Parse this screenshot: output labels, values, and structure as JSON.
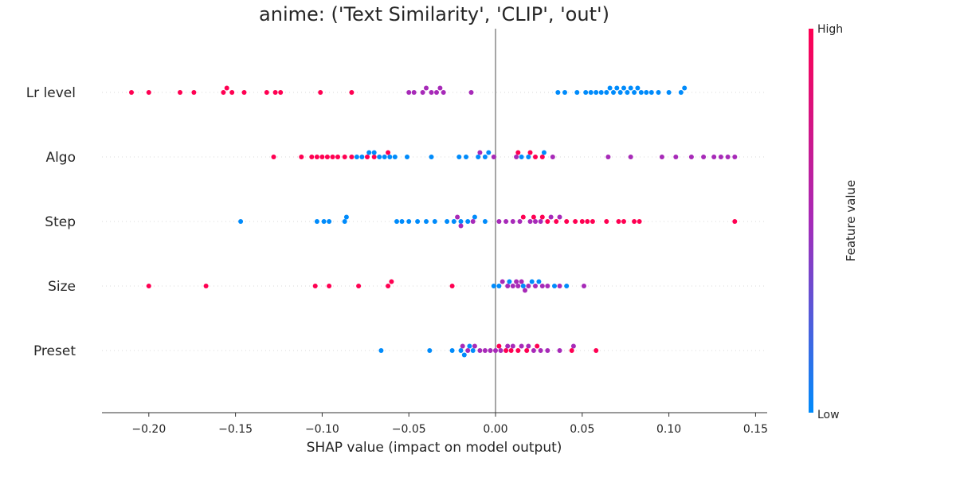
{
  "chart_data": {
    "type": "scatter",
    "title": "anime: ('Text Similarity', 'CLIP', 'out')",
    "xlabel": "SHAP value (impact on model output)",
    "xlim": [
      -0.226,
      0.157
    ],
    "xticks": [
      -0.2,
      -0.15,
      -0.1,
      -0.05,
      0.0,
      0.05,
      0.1,
      0.15
    ],
    "xtick_labels": [
      "−0.20",
      "−0.15",
      "−0.10",
      "−0.05",
      "0.00",
      "0.05",
      "0.10",
      "0.15"
    ],
    "categories": [
      "Lr level",
      "Algo",
      "Step",
      "Size",
      "Preset"
    ],
    "colorbar": {
      "high_label": "High",
      "low_label": "Low",
      "label": "Feature value",
      "low_color": "#008bfb",
      "mid_color": "#a72ab8",
      "high_color": "#ff0052"
    },
    "series": [
      {
        "feature": "Lr level",
        "points": [
          [
            -0.21,
            1
          ],
          [
            -0.2,
            1
          ],
          [
            -0.182,
            1
          ],
          [
            -0.174,
            1
          ],
          [
            -0.157,
            1
          ],
          [
            -0.155,
            1
          ],
          [
            -0.152,
            1
          ],
          [
            -0.145,
            1
          ],
          [
            -0.132,
            1
          ],
          [
            -0.127,
            1
          ],
          [
            -0.124,
            1
          ],
          [
            -0.101,
            1
          ],
          [
            -0.083,
            1
          ],
          [
            -0.05,
            0.5
          ],
          [
            -0.047,
            0.5
          ],
          [
            -0.042,
            0.5
          ],
          [
            -0.04,
            0.5
          ],
          [
            -0.037,
            0.5
          ],
          [
            -0.034,
            0.5
          ],
          [
            -0.032,
            0.5
          ],
          [
            -0.03,
            0.5
          ],
          [
            -0.014,
            0.5
          ],
          [
            0.036,
            0
          ],
          [
            0.04,
            0
          ],
          [
            0.047,
            0
          ],
          [
            0.052,
            0
          ],
          [
            0.055,
            0
          ],
          [
            0.058,
            0
          ],
          [
            0.061,
            0
          ],
          [
            0.064,
            0
          ],
          [
            0.066,
            0
          ],
          [
            0.068,
            0
          ],
          [
            0.07,
            0
          ],
          [
            0.072,
            0
          ],
          [
            0.074,
            0
          ],
          [
            0.076,
            0
          ],
          [
            0.078,
            0
          ],
          [
            0.08,
            0
          ],
          [
            0.082,
            0
          ],
          [
            0.084,
            0
          ],
          [
            0.087,
            0
          ],
          [
            0.09,
            0
          ],
          [
            0.094,
            0
          ],
          [
            0.1,
            0
          ],
          [
            0.107,
            0
          ],
          [
            0.109,
            0
          ]
        ]
      },
      {
        "feature": "Algo",
        "points": [
          [
            -0.128,
            1
          ],
          [
            -0.112,
            1
          ],
          [
            -0.106,
            1
          ],
          [
            -0.103,
            1
          ],
          [
            -0.1,
            1
          ],
          [
            -0.097,
            1
          ],
          [
            -0.094,
            1
          ],
          [
            -0.091,
            1
          ],
          [
            -0.087,
            1
          ],
          [
            -0.083,
            1
          ],
          [
            -0.074,
            1
          ],
          [
            -0.07,
            1
          ],
          [
            -0.062,
            1
          ],
          [
            -0.08,
            0
          ],
          [
            -0.077,
            0
          ],
          [
            -0.073,
            0
          ],
          [
            -0.07,
            0
          ],
          [
            -0.067,
            0
          ],
          [
            -0.064,
            0
          ],
          [
            -0.061,
            0
          ],
          [
            -0.058,
            0
          ],
          [
            -0.051,
            0
          ],
          [
            -0.037,
            0
          ],
          [
            -0.021,
            0
          ],
          [
            -0.017,
            0
          ],
          [
            -0.01,
            0
          ],
          [
            -0.006,
            0
          ],
          [
            -0.004,
            0
          ],
          [
            0.015,
            0
          ],
          [
            0.019,
            0
          ],
          [
            0.028,
            0
          ],
          [
            -0.009,
            0.5
          ],
          [
            -0.001,
            0.5
          ],
          [
            0.012,
            0.5
          ],
          [
            0.033,
            0.5
          ],
          [
            0.065,
            0.5
          ],
          [
            0.078,
            0.5
          ],
          [
            0.096,
            0.5
          ],
          [
            0.104,
            0.5
          ],
          [
            0.113,
            0.5
          ],
          [
            0.12,
            0.5
          ],
          [
            0.126,
            0.5
          ],
          [
            0.13,
            0.5
          ],
          [
            0.134,
            0.5
          ],
          [
            0.138,
            0.5
          ],
          [
            0.013,
            1
          ],
          [
            0.02,
            1
          ],
          [
            0.023,
            1
          ],
          [
            0.027,
            1
          ]
        ]
      },
      {
        "feature": "Step",
        "points": [
          [
            -0.147,
            0
          ],
          [
            -0.103,
            0
          ],
          [
            -0.099,
            0
          ],
          [
            -0.096,
            0
          ],
          [
            -0.087,
            0
          ],
          [
            -0.086,
            0
          ],
          [
            -0.057,
            0
          ],
          [
            -0.054,
            0
          ],
          [
            -0.05,
            0
          ],
          [
            -0.045,
            0
          ],
          [
            -0.04,
            0
          ],
          [
            -0.035,
            0
          ],
          [
            -0.028,
            0
          ],
          [
            -0.024,
            0
          ],
          [
            -0.02,
            0
          ],
          [
            -0.016,
            0
          ],
          [
            -0.012,
            0
          ],
          [
            -0.006,
            0
          ],
          [
            -0.022,
            0.5
          ],
          [
            -0.02,
            0.5
          ],
          [
            -0.013,
            0.5
          ],
          [
            0.002,
            0.5
          ],
          [
            0.006,
            0.5
          ],
          [
            0.01,
            0.5
          ],
          [
            0.014,
            0.5
          ],
          [
            0.02,
            0.5
          ],
          [
            0.023,
            0.5
          ],
          [
            0.026,
            0.5
          ],
          [
            0.032,
            0.5
          ],
          [
            0.037,
            0.5
          ],
          [
            0.016,
            1
          ],
          [
            0.022,
            1
          ],
          [
            0.027,
            1
          ],
          [
            0.03,
            1
          ],
          [
            0.035,
            1
          ],
          [
            0.041,
            1
          ],
          [
            0.046,
            1
          ],
          [
            0.05,
            1
          ],
          [
            0.053,
            1
          ],
          [
            0.056,
            1
          ],
          [
            0.064,
            1
          ],
          [
            0.071,
            1
          ],
          [
            0.074,
            1
          ],
          [
            0.08,
            1
          ],
          [
            0.083,
            1
          ],
          [
            0.138,
            1
          ]
        ]
      },
      {
        "feature": "Size",
        "points": [
          [
            -0.2,
            1
          ],
          [
            -0.167,
            1
          ],
          [
            -0.104,
            1
          ],
          [
            -0.096,
            1
          ],
          [
            -0.079,
            1
          ],
          [
            -0.062,
            1
          ],
          [
            -0.06,
            1
          ],
          [
            -0.025,
            1
          ],
          [
            -0.001,
            0
          ],
          [
            0.002,
            0
          ],
          [
            0.008,
            0
          ],
          [
            0.016,
            0
          ],
          [
            0.021,
            0
          ],
          [
            0.025,
            0
          ],
          [
            0.034,
            0
          ],
          [
            0.041,
            0
          ],
          [
            0.004,
            0.5
          ],
          [
            0.007,
            0.5
          ],
          [
            0.01,
            0.5
          ],
          [
            0.012,
            0.5
          ],
          [
            0.013,
            0.5
          ],
          [
            0.015,
            0.5
          ],
          [
            0.017,
            0.5
          ],
          [
            0.019,
            0.5
          ],
          [
            0.023,
            0.5
          ],
          [
            0.027,
            0.5
          ],
          [
            0.03,
            0.5
          ],
          [
            0.037,
            0.5
          ],
          [
            0.051,
            0.5
          ]
        ]
      },
      {
        "feature": "Preset",
        "points": [
          [
            -0.066,
            0
          ],
          [
            -0.038,
            0
          ],
          [
            -0.025,
            0
          ],
          [
            -0.02,
            0
          ],
          [
            -0.018,
            0
          ],
          [
            -0.015,
            0
          ],
          [
            -0.013,
            0
          ],
          [
            -0.019,
            0.5
          ],
          [
            -0.016,
            0.5
          ],
          [
            -0.012,
            0.5
          ],
          [
            -0.009,
            0.5
          ],
          [
            -0.006,
            0.5
          ],
          [
            -0.003,
            0.5
          ],
          [
            0.0,
            0.5
          ],
          [
            0.003,
            0.5
          ],
          [
            0.007,
            0.5
          ],
          [
            0.01,
            0.5
          ],
          [
            0.015,
            0.5
          ],
          [
            0.019,
            0.5
          ],
          [
            0.022,
            0.5
          ],
          [
            0.026,
            0.5
          ],
          [
            0.03,
            0.5
          ],
          [
            0.037,
            0.5
          ],
          [
            0.045,
            0.5
          ],
          [
            0.002,
            1
          ],
          [
            0.006,
            1
          ],
          [
            0.009,
            1
          ],
          [
            0.013,
            1
          ],
          [
            0.018,
            1
          ],
          [
            0.024,
            1
          ],
          [
            0.044,
            1
          ],
          [
            0.058,
            1
          ]
        ]
      }
    ]
  }
}
